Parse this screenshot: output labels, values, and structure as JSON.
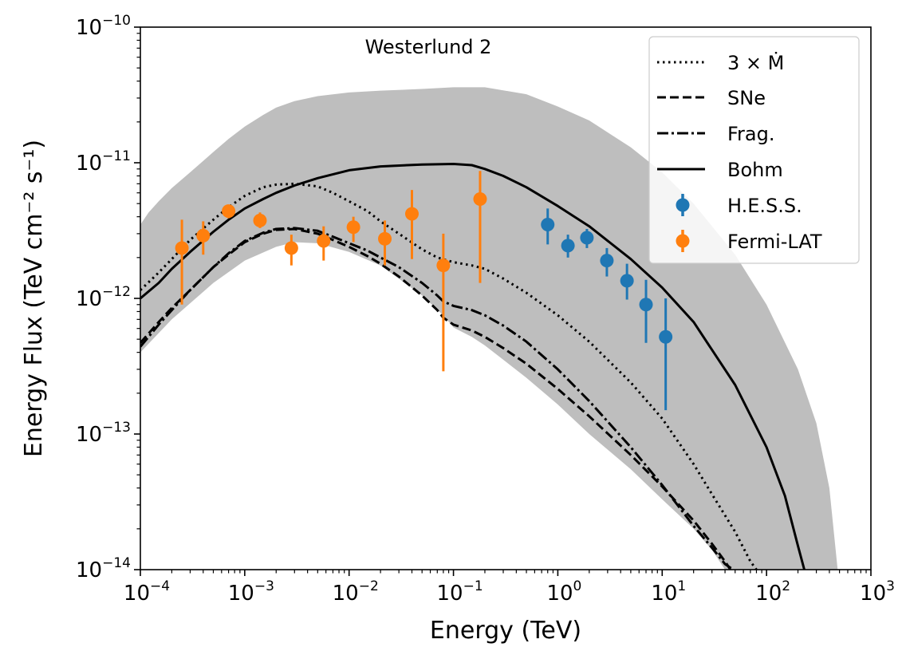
{
  "chart_data": {
    "type": "line",
    "title": "",
    "annotation": "Westerlund 2",
    "xlabel": "Energy (TeV)",
    "ylabel": "Energy Flux (TeV cm⁻² s⁻¹)",
    "xscale": "log",
    "yscale": "log",
    "xlim": [
      0.0001,
      1000
    ],
    "ylim": [
      1e-14,
      1e-10
    ],
    "legend_position": "top-right",
    "x_ticks": [
      {
        "value": 0.0001,
        "base": "10",
        "exp": "−4"
      },
      {
        "value": 0.001,
        "base": "10",
        "exp": "−3"
      },
      {
        "value": 0.01,
        "base": "10",
        "exp": "−2"
      },
      {
        "value": 0.1,
        "base": "10",
        "exp": "−1"
      },
      {
        "value": 1,
        "base": "10",
        "exp": "0"
      },
      {
        "value": 10,
        "base": "10",
        "exp": "1"
      },
      {
        "value": 100,
        "base": "10",
        "exp": "2"
      },
      {
        "value": 1000,
        "base": "10",
        "exp": "3"
      }
    ],
    "y_ticks": [
      {
        "value": 1e-14,
        "base": "10",
        "exp": "−14"
      },
      {
        "value": 1e-13,
        "base": "10",
        "exp": "−13"
      },
      {
        "value": 1e-12,
        "base": "10",
        "exp": "−12"
      },
      {
        "value": 1e-11,
        "base": "10",
        "exp": "−11"
      },
      {
        "value": 1e-10,
        "base": "10",
        "exp": "−10"
      }
    ],
    "band": {
      "color": "#bebebe",
      "upper": [
        [
          0.0001,
          3.5e-12
        ],
        [
          0.00012,
          4.3e-12
        ],
        [
          0.00015,
          5.2e-12
        ],
        [
          0.0002,
          6.5e-12
        ],
        [
          0.0003,
          8.5e-12
        ],
        [
          0.0005,
          1.2e-11
        ],
        [
          0.0007,
          1.5e-11
        ],
        [
          0.001,
          1.85e-11
        ],
        [
          0.0015,
          2.25e-11
        ],
        [
          0.002,
          2.55e-11
        ],
        [
          0.003,
          2.85e-11
        ],
        [
          0.005,
          3.1e-11
        ],
        [
          0.01,
          3.3e-11
        ],
        [
          0.02,
          3.4e-11
        ],
        [
          0.05,
          3.5e-11
        ],
        [
          0.1,
          3.6e-11
        ],
        [
          0.2,
          3.6e-11
        ],
        [
          0.5,
          3.2e-11
        ],
        [
          1,
          2.6e-11
        ],
        [
          2,
          2.05e-11
        ],
        [
          5,
          1.3e-11
        ],
        [
          10,
          8.5e-12
        ],
        [
          20,
          5e-12
        ],
        [
          50,
          2.1e-12
        ],
        [
          100,
          9e-13
        ],
        [
          200,
          3e-13
        ],
        [
          300,
          1.2e-13
        ],
        [
          400,
          4e-14
        ],
        [
          480,
          1e-14
        ]
      ],
      "lower": [
        [
          0.0001,
          4e-13
        ],
        [
          0.0002,
          7e-13
        ],
        [
          0.0005,
          1.3e-12
        ],
        [
          0.001,
          1.9e-12
        ],
        [
          0.002,
          2.4e-12
        ],
        [
          0.003,
          2.6e-12
        ],
        [
          0.005,
          2.55e-12
        ],
        [
          0.01,
          2.2e-12
        ],
        [
          0.02,
          1.75e-12
        ],
        [
          0.05,
          1.05e-12
        ],
        [
          0.08,
          7.5e-13
        ],
        [
          0.1,
          6.1e-13
        ],
        [
          0.15,
          5.2e-13
        ],
        [
          0.2,
          4.5e-13
        ],
        [
          0.5,
          2.6e-13
        ],
        [
          1,
          1.65e-13
        ],
        [
          2,
          1e-13
        ],
        [
          5,
          5.5e-14
        ],
        [
          10,
          3.3e-14
        ],
        [
          20,
          2e-14
        ],
        [
          30,
          1.4e-14
        ],
        [
          40,
          1e-14
        ]
      ]
    },
    "series": [
      {
        "name": "3 × Ṁ",
        "style": "dotted",
        "color": "#000000",
        "x": [
          0.0001,
          0.00015,
          0.0002,
          0.0003,
          0.0005,
          0.0007,
          0.001,
          0.0015,
          0.002,
          0.003,
          0.005,
          0.007,
          0.01,
          0.015,
          0.02,
          0.03,
          0.05,
          0.07,
          0.1,
          0.15,
          0.2,
          0.3,
          0.5,
          1,
          2,
          5,
          10,
          20,
          30,
          50,
          70,
          80
        ],
        "y": [
          1.15e-12,
          1.55e-12,
          1.95e-12,
          2.7e-12,
          3.8e-12,
          4.7e-12,
          5.7e-12,
          6.6e-12,
          6.9e-12,
          7e-12,
          6.7e-12,
          6e-12,
          5.2e-12,
          4.4e-12,
          3.7e-12,
          3e-12,
          2.3e-12,
          2e-12,
          1.85e-12,
          1.75e-12,
          1.65e-12,
          1.4e-12,
          1.1e-12,
          7.5e-13,
          4.8e-13,
          2.4e-13,
          1.3e-13,
          6e-14,
          3.6e-14,
          1.9e-14,
          1.15e-14,
          1e-14
        ]
      },
      {
        "name": "SNe",
        "style": "dashed",
        "color": "#000000",
        "x": [
          0.0001,
          0.00015,
          0.0002,
          0.0003,
          0.0005,
          0.0007,
          0.001,
          0.0015,
          0.002,
          0.003,
          0.005,
          0.007,
          0.01,
          0.015,
          0.02,
          0.03,
          0.05,
          0.07,
          0.08,
          0.1,
          0.15,
          0.2,
          0.3,
          0.5,
          1,
          2,
          5,
          10,
          20,
          30,
          40,
          45
        ],
        "y": [
          4.7e-13,
          6.7e-13,
          8.5e-13,
          1.15e-12,
          1.7e-12,
          2.1e-12,
          2.6e-12,
          3e-12,
          3.2e-12,
          3.25e-12,
          3e-12,
          2.7e-12,
          2.4e-12,
          2.05e-12,
          1.8e-12,
          1.45e-12,
          1.05e-12,
          8.2e-13,
          7.2e-13,
          6.4e-13,
          5.8e-13,
          5.2e-13,
          4.3e-13,
          3.3e-13,
          2.15e-13,
          1.35e-13,
          7e-14,
          4.1e-14,
          2.3e-14,
          1.55e-14,
          1.15e-14,
          1e-14
        ]
      },
      {
        "name": "Frag.",
        "style": "dashdot",
        "color": "#000000",
        "x": [
          0.0001,
          0.00015,
          0.0002,
          0.0003,
          0.0005,
          0.0007,
          0.001,
          0.0015,
          0.002,
          0.003,
          0.005,
          0.007,
          0.01,
          0.015,
          0.02,
          0.03,
          0.05,
          0.07,
          0.08,
          0.1,
          0.15,
          0.2,
          0.3,
          0.5,
          1,
          2,
          5,
          10,
          20,
          30,
          40,
          48
        ],
        "y": [
          4.4e-13,
          6.4e-13,
          8.2e-13,
          1.15e-12,
          1.7e-12,
          2.15e-12,
          2.65e-12,
          3.05e-12,
          3.25e-12,
          3.3e-12,
          3.15e-12,
          2.85e-12,
          2.55e-12,
          2.25e-12,
          2e-12,
          1.7e-12,
          1.3e-12,
          1.05e-12,
          9.5e-13,
          8.8e-13,
          8.2e-13,
          7.5e-13,
          6.3e-13,
          4.8e-13,
          3e-13,
          1.75e-13,
          8e-14,
          4.2e-14,
          2.1e-14,
          1.45e-14,
          1.1e-14,
          1e-14
        ]
      },
      {
        "name": "Bohm",
        "style": "solid",
        "color": "#000000",
        "x": [
          0.0001,
          0.00015,
          0.0002,
          0.0003,
          0.0005,
          0.0007,
          0.001,
          0.0015,
          0.002,
          0.003,
          0.005,
          0.01,
          0.02,
          0.05,
          0.1,
          0.15,
          0.2,
          0.3,
          0.5,
          1,
          2,
          5,
          10,
          20,
          50,
          100,
          150,
          200,
          230
        ],
        "y": [
          1e-12,
          1.3e-12,
          1.65e-12,
          2.2e-12,
          3.1e-12,
          3.8e-12,
          4.6e-12,
          5.4e-12,
          6e-12,
          6.8e-12,
          7.7e-12,
          8.8e-12,
          9.4e-12,
          9.7e-12,
          9.8e-12,
          9.6e-12,
          9e-12,
          8e-12,
          6.6e-12,
          4.8e-12,
          3.4e-12,
          1.95e-12,
          1.2e-12,
          6.7e-13,
          2.3e-13,
          8e-14,
          3.5e-14,
          1.5e-14,
          1e-14
        ]
      }
    ],
    "scatter": [
      {
        "name": "H.E.S.S.",
        "color": "#1f77b4",
        "points": [
          {
            "x": 0.8,
            "y": 3.5e-12,
            "ylo": 2.5e-12,
            "yhi": 4.6e-12
          },
          {
            "x": 1.25,
            "y": 2.45e-12,
            "ylo": 2e-12,
            "yhi": 2.95e-12
          },
          {
            "x": 1.9,
            "y": 2.8e-12,
            "ylo": 2.35e-12,
            "yhi": 3.25e-12
          },
          {
            "x": 2.95,
            "y": 1.9e-12,
            "ylo": 1.45e-12,
            "yhi": 2.35e-12
          },
          {
            "x": 4.6,
            "y": 1.35e-12,
            "ylo": 9.8e-13,
            "yhi": 1.8e-12
          },
          {
            "x": 7.0,
            "y": 9e-13,
            "ylo": 4.7e-13,
            "yhi": 1.37e-12
          },
          {
            "x": 10.8,
            "y": 5.2e-13,
            "ylo": 1.5e-13,
            "yhi": 1e-12
          }
        ]
      },
      {
        "name": "Fermi-LAT",
        "color": "#ff7f0e",
        "points": [
          {
            "x": 0.00025,
            "y": 2.35e-12,
            "ylo": 9e-13,
            "yhi": 3.8e-12
          },
          {
            "x": 0.0004,
            "y": 2.9e-12,
            "ylo": 2.1e-12,
            "yhi": 3.7e-12
          },
          {
            "x": 0.0007,
            "y": 4.4e-12,
            "ylo": 3.9e-12,
            "yhi": 4.9e-12
          },
          {
            "x": 0.0014,
            "y": 3.75e-12,
            "ylo": 3.3e-12,
            "yhi": 4.3e-12
          },
          {
            "x": 0.0028,
            "y": 2.35e-12,
            "ylo": 1.75e-12,
            "yhi": 2.95e-12
          },
          {
            "x": 0.0057,
            "y": 2.65e-12,
            "ylo": 1.9e-12,
            "yhi": 3.4e-12
          },
          {
            "x": 0.011,
            "y": 3.35e-12,
            "ylo": 2.6e-12,
            "yhi": 4e-12
          },
          {
            "x": 0.022,
            "y": 2.75e-12,
            "ylo": 1.75e-12,
            "yhi": 3.75e-12
          },
          {
            "x": 0.04,
            "y": 4.2e-12,
            "ylo": 1.95e-12,
            "yhi": 6.3e-12
          },
          {
            "x": 0.08,
            "y": 1.75e-12,
            "ylo": 2.9e-13,
            "yhi": 3e-12
          },
          {
            "x": 0.18,
            "y": 5.4e-12,
            "ylo": 1.3e-12,
            "yhi": 8.7e-12
          }
        ]
      }
    ]
  }
}
